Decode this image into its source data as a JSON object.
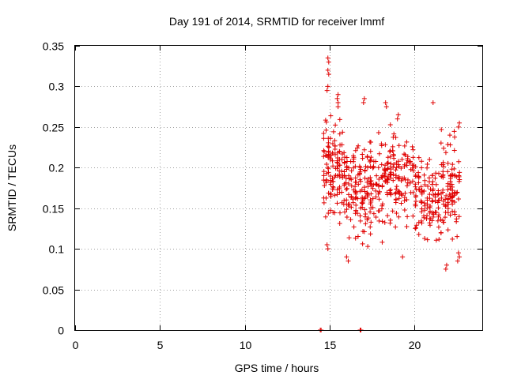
{
  "chart_data": {
    "type": "scatter",
    "title": "Day 191 of 2014, SRMTID for receiver lmmf",
    "xlabel": "GPS time / hours",
    "ylabel": "SRMTID / TECUs",
    "xlim": [
      0,
      24
    ],
    "ylim": [
      0,
      0.35
    ],
    "xticks": [
      0,
      5,
      10,
      15,
      20
    ],
    "yticks": [
      0,
      0.05,
      0.1,
      0.15,
      0.2,
      0.25,
      0.3,
      0.35
    ],
    "xtick_labels": [
      "0",
      "5",
      "10",
      "15",
      "20"
    ],
    "ytick_labels": [
      "0",
      "0.05",
      "0.1",
      "0.15",
      "0.2",
      "0.25",
      "0.3",
      "0.35"
    ],
    "grid": true,
    "marker": "+",
    "color": "#e00000",
    "zero_points_x": [
      14.45,
      14.5,
      16.8,
      16.85
    ],
    "clusters": [
      {
        "x_start": 14.6,
        "x_end": 15.8,
        "y_center": 0.2,
        "y_spread": 0.07,
        "count": 110
      },
      {
        "x_start": 15.8,
        "x_end": 17.0,
        "y_center": 0.175,
        "y_spread": 0.065,
        "count": 100
      },
      {
        "x_start": 17.0,
        "x_end": 18.5,
        "y_center": 0.18,
        "y_spread": 0.065,
        "count": 120
      },
      {
        "x_start": 18.5,
        "x_end": 20.0,
        "y_center": 0.19,
        "y_spread": 0.06,
        "count": 110
      },
      {
        "x_start": 20.0,
        "x_end": 21.5,
        "y_center": 0.165,
        "y_spread": 0.055,
        "count": 110
      },
      {
        "x_start": 21.5,
        "x_end": 22.7,
        "y_center": 0.17,
        "y_spread": 0.065,
        "count": 100
      }
    ],
    "highlight_points": [
      [
        14.9,
        0.335
      ],
      [
        14.95,
        0.33
      ],
      [
        14.9,
        0.32
      ],
      [
        14.95,
        0.315
      ],
      [
        14.9,
        0.3
      ],
      [
        14.85,
        0.295
      ],
      [
        15.5,
        0.29
      ],
      [
        15.45,
        0.285
      ],
      [
        15.5,
        0.28
      ],
      [
        15.5,
        0.275
      ],
      [
        17.0,
        0.28
      ],
      [
        17.05,
        0.285
      ],
      [
        18.3,
        0.28
      ],
      [
        18.35,
        0.275
      ],
      [
        19.0,
        0.26
      ],
      [
        19.05,
        0.265
      ],
      [
        21.1,
        0.28
      ],
      [
        22.6,
        0.25
      ],
      [
        22.65,
        0.255
      ],
      [
        14.85,
        0.105
      ],
      [
        14.9,
        0.1
      ],
      [
        16.0,
        0.09
      ],
      [
        16.1,
        0.085
      ],
      [
        21.9,
        0.08
      ],
      [
        21.85,
        0.075
      ],
      [
        22.6,
        0.095
      ],
      [
        22.65,
        0.09
      ],
      [
        22.55,
        0.085
      ],
      [
        19.3,
        0.09
      ]
    ]
  }
}
